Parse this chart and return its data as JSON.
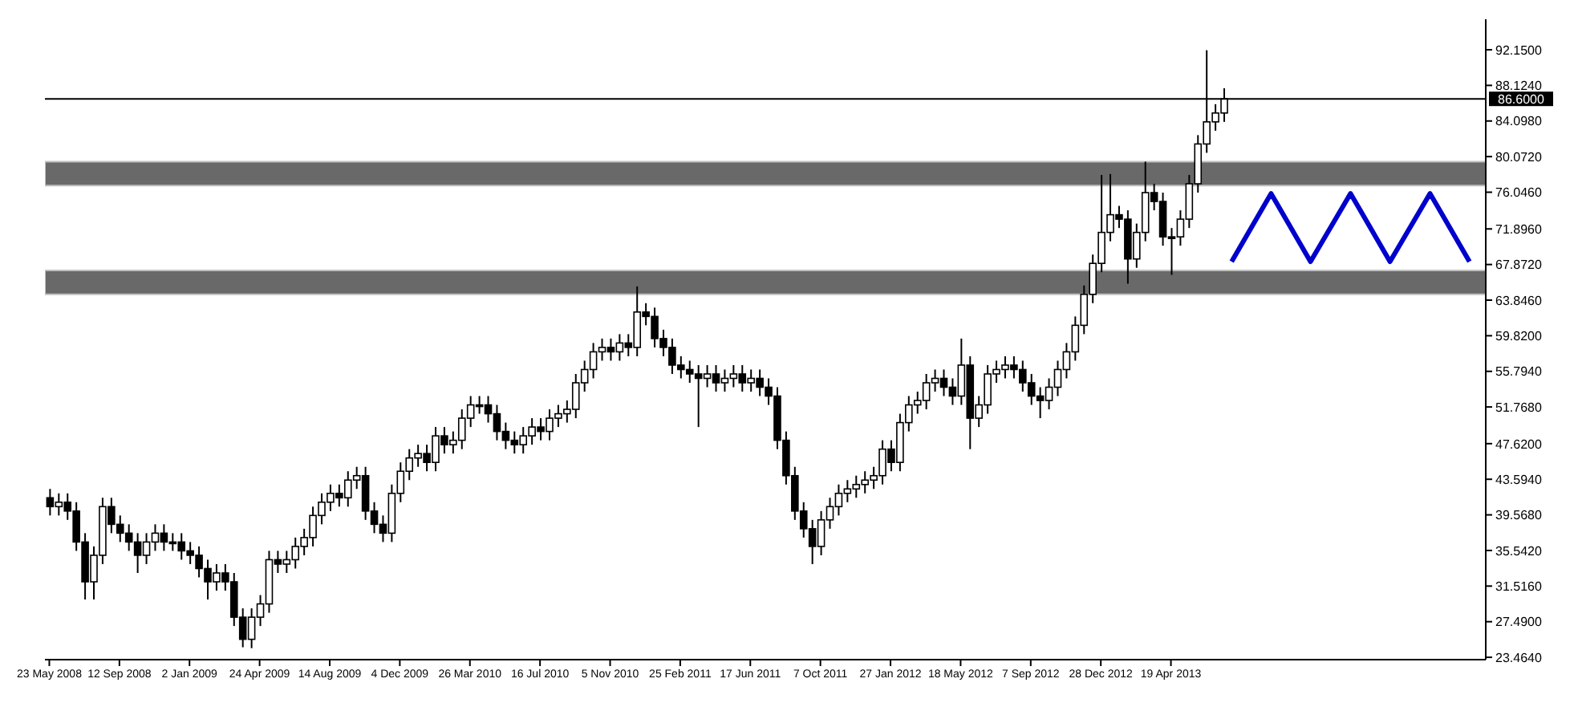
{
  "chart_data": {
    "type": "candlestick",
    "color": "#000000",
    "x": [
      "2008-05-23",
      "2008-06-06",
      "2008-06-20",
      "2008-07-04",
      "2008-07-18",
      "2008-08-01",
      "2008-08-15",
      "2008-08-29",
      "2008-09-12",
      "2008-09-26",
      "2008-10-10",
      "2008-10-24",
      "2008-11-07",
      "2008-11-21",
      "2008-12-05",
      "2008-12-19",
      "2009-01-02",
      "2009-01-16",
      "2009-01-30",
      "2009-02-13",
      "2009-02-27",
      "2009-03-13",
      "2009-03-27",
      "2009-04-10",
      "2009-04-24",
      "2009-05-08",
      "2009-05-22",
      "2009-06-05",
      "2009-06-19",
      "2009-07-03",
      "2009-07-17",
      "2009-07-31",
      "2009-08-14",
      "2009-08-28",
      "2009-09-11",
      "2009-09-25",
      "2009-10-09",
      "2009-10-23",
      "2009-11-06",
      "2009-11-20",
      "2009-12-04",
      "2009-12-18",
      "2010-01-01",
      "2010-01-15",
      "2010-01-29",
      "2010-02-12",
      "2010-02-26",
      "2010-03-12",
      "2010-03-26",
      "2010-04-09",
      "2010-04-23",
      "2010-05-07",
      "2010-05-21",
      "2010-06-04",
      "2010-06-18",
      "2010-07-02",
      "2010-07-16",
      "2010-07-30",
      "2010-08-13",
      "2010-08-27",
      "2010-09-10",
      "2010-09-24",
      "2010-10-08",
      "2010-10-22",
      "2010-11-05",
      "2010-11-19",
      "2010-12-03",
      "2010-12-17",
      "2010-12-31",
      "2011-01-14",
      "2011-01-28",
      "2011-02-11",
      "2011-02-25",
      "2011-03-11",
      "2011-03-25",
      "2011-04-08",
      "2011-04-22",
      "2011-05-06",
      "2011-05-20",
      "2011-06-03",
      "2011-06-17",
      "2011-07-01",
      "2011-07-15",
      "2011-07-29",
      "2011-08-12",
      "2011-08-26",
      "2011-09-09",
      "2011-09-23",
      "2011-10-07",
      "2011-10-21",
      "2011-11-04",
      "2011-11-18",
      "2011-12-02",
      "2011-12-16",
      "2011-12-30",
      "2012-01-13",
      "2012-01-27",
      "2012-02-10",
      "2012-02-24",
      "2012-03-09",
      "2012-03-23",
      "2012-04-06",
      "2012-04-20",
      "2012-05-04",
      "2012-05-18",
      "2012-06-01",
      "2012-06-15",
      "2012-06-29",
      "2012-07-13",
      "2012-07-27",
      "2012-08-10",
      "2012-08-24",
      "2012-09-07",
      "2012-09-21",
      "2012-10-05",
      "2012-10-19",
      "2012-11-02",
      "2012-11-16",
      "2012-11-30",
      "2012-12-14",
      "2012-12-28",
      "2013-01-11",
      "2013-01-25",
      "2013-02-08",
      "2013-02-22",
      "2013-03-08",
      "2013-03-22",
      "2013-04-05",
      "2013-04-19",
      "2013-05-03",
      "2013-05-17",
      "2013-05-31",
      "2013-06-14",
      "2013-06-28",
      "2013-07-12"
    ],
    "ohlc": [
      [
        41.5,
        42.5,
        39.5,
        40.5
      ],
      [
        40.5,
        42,
        39.5,
        41
      ],
      [
        41,
        42,
        39,
        40
      ],
      [
        40,
        41,
        35.5,
        36.5
      ],
      [
        36.5,
        37.5,
        30,
        32
      ],
      [
        32,
        36,
        30,
        35
      ],
      [
        35,
        41.5,
        34,
        40.5
      ],
      [
        40.5,
        41.5,
        37.5,
        38.5
      ],
      [
        38.5,
        39.5,
        36.5,
        37.5
      ],
      [
        37.5,
        38.5,
        35.5,
        36.5
      ],
      [
        36.5,
        37.5,
        33,
        35
      ],
      [
        35,
        37.5,
        34,
        36.5
      ],
      [
        36.5,
        38.5,
        35.5,
        37.5
      ],
      [
        37.5,
        38.5,
        35.5,
        36.5
      ],
      [
        36.5,
        37.5,
        35.5,
        36.5
      ],
      [
        36.5,
        37.5,
        34.5,
        35.5
      ],
      [
        35.5,
        36.5,
        34,
        35
      ],
      [
        35,
        36,
        32.5,
        33.5
      ],
      [
        33.5,
        34.5,
        30,
        32
      ],
      [
        32,
        34,
        31,
        33
      ],
      [
        33,
        34,
        31,
        32
      ],
      [
        32,
        33,
        27,
        28
      ],
      [
        28,
        29,
        24.6,
        25.5
      ],
      [
        25.5,
        29,
        24.5,
        28
      ],
      [
        28,
        30.5,
        27,
        29.5
      ],
      [
        29.5,
        35.5,
        28.5,
        34.5
      ],
      [
        34.5,
        35.5,
        33,
        34
      ],
      [
        34,
        35.5,
        33,
        34.5
      ],
      [
        34.5,
        37,
        33.5,
        36
      ],
      [
        36,
        38,
        35,
        37
      ],
      [
        37,
        40.5,
        36,
        39.5
      ],
      [
        39.5,
        42,
        38.5,
        41
      ],
      [
        41,
        43,
        40,
        42
      ],
      [
        42,
        43,
        40.5,
        41.5
      ],
      [
        41.5,
        44.5,
        40.5,
        43.5
      ],
      [
        43.5,
        45,
        42.5,
        44
      ],
      [
        44,
        45,
        39,
        40
      ],
      [
        40,
        41,
        37.5,
        38.5
      ],
      [
        38.5,
        39.5,
        36.5,
        37.5
      ],
      [
        37.5,
        43,
        36.5,
        42
      ],
      [
        42,
        45.5,
        41,
        44.5
      ],
      [
        44.5,
        47,
        43.5,
        46
      ],
      [
        46,
        47.5,
        45,
        46.5
      ],
      [
        46.5,
        47.5,
        44.5,
        45.5
      ],
      [
        45.5,
        49.5,
        44.5,
        48.5
      ],
      [
        48.5,
        49.5,
        46.5,
        47.5
      ],
      [
        47.5,
        49,
        46.5,
        48
      ],
      [
        48,
        51.5,
        47,
        50.5
      ],
      [
        50.5,
        53,
        49.5,
        52
      ],
      [
        52,
        53,
        51,
        52
      ],
      [
        52,
        53,
        50,
        51
      ],
      [
        51,
        52,
        48,
        49
      ],
      [
        49,
        50,
        47,
        48
      ],
      [
        48,
        49,
        46.5,
        47.5
      ],
      [
        47.5,
        49.5,
        46.5,
        48.5
      ],
      [
        48.5,
        50.5,
        47.5,
        49.5
      ],
      [
        49.5,
        50.5,
        48,
        49
      ],
      [
        49,
        51.5,
        48,
        50.5
      ],
      [
        50.5,
        52,
        49.5,
        51
      ],
      [
        51,
        52.5,
        50,
        51.5
      ],
      [
        51.5,
        55.5,
        50.5,
        54.5
      ],
      [
        54.5,
        57,
        53.5,
        56
      ],
      [
        56,
        59,
        55,
        58
      ],
      [
        58,
        59.5,
        57,
        58.5
      ],
      [
        58.5,
        59.5,
        57,
        58
      ],
      [
        58,
        60,
        57,
        59
      ],
      [
        59,
        60,
        57.5,
        58.5
      ],
      [
        58.5,
        65.4,
        57.5,
        62.5
      ],
      [
        62.5,
        63.5,
        61,
        62
      ],
      [
        62,
        63,
        58.5,
        59.5
      ],
      [
        59.5,
        60.5,
        57.5,
        58.5
      ],
      [
        58.5,
        59.5,
        55.5,
        56.5
      ],
      [
        56.5,
        57.5,
        55,
        56
      ],
      [
        56,
        57,
        54.5,
        55.5
      ],
      [
        55.5,
        56.5,
        49.5,
        55
      ],
      [
        55,
        56.5,
        54,
        55.5
      ],
      [
        55.5,
        56.5,
        53.5,
        54.5
      ],
      [
        54.5,
        56,
        53.5,
        55
      ],
      [
        55,
        56.5,
        54,
        55.5
      ],
      [
        55.5,
        56.5,
        53.5,
        54.5
      ],
      [
        54.5,
        56,
        53.5,
        55
      ],
      [
        55,
        56,
        53,
        54
      ],
      [
        54,
        55,
        52,
        53
      ],
      [
        53,
        54,
        47,
        48
      ],
      [
        48,
        49,
        43,
        44
      ],
      [
        44,
        45,
        39,
        40
      ],
      [
        40,
        41,
        37,
        38
      ],
      [
        38,
        39,
        34,
        36
      ],
      [
        36,
        40,
        35,
        39
      ],
      [
        39,
        41.5,
        38,
        40.5
      ],
      [
        40.5,
        43,
        39.5,
        42
      ],
      [
        42,
        43.5,
        41,
        42.5
      ],
      [
        42.5,
        44,
        41.5,
        43
      ],
      [
        43,
        44.5,
        42,
        43.5
      ],
      [
        43.5,
        45,
        42.5,
        44
      ],
      [
        44,
        48,
        43,
        47
      ],
      [
        47,
        48,
        44.5,
        45.5
      ],
      [
        45.5,
        51,
        44.5,
        50
      ],
      [
        50,
        53,
        49,
        52
      ],
      [
        52,
        53.5,
        51,
        52.5
      ],
      [
        52.5,
        55.5,
        51.5,
        54.5
      ],
      [
        54.5,
        56,
        53.5,
        55
      ],
      [
        55,
        56,
        53,
        54
      ],
      [
        54,
        55,
        52,
        53
      ],
      [
        53,
        59.5,
        52,
        56.5
      ],
      [
        56.5,
        57.5,
        47,
        50.5
      ],
      [
        50.5,
        53,
        49.5,
        52
      ],
      [
        52,
        56.5,
        51,
        55.5
      ],
      [
        55.5,
        57,
        54.5,
        56
      ],
      [
        56,
        57.5,
        55,
        56.5
      ],
      [
        56.5,
        57.5,
        55,
        56
      ],
      [
        56,
        57,
        53.5,
        54.5
      ],
      [
        54.5,
        55.5,
        52,
        53
      ],
      [
        53,
        54,
        50.5,
        52.5
      ],
      [
        52.5,
        55,
        51.5,
        54
      ],
      [
        54,
        57,
        53,
        56
      ],
      [
        56,
        59,
        55,
        58
      ],
      [
        58,
        62,
        57,
        61
      ],
      [
        61,
        65.5,
        60,
        64.5
      ],
      [
        64.5,
        69,
        63.5,
        68
      ],
      [
        68,
        78,
        67,
        71.5
      ],
      [
        71.5,
        78.1,
        70.5,
        73.5
      ],
      [
        73.5,
        74.5,
        72,
        73
      ],
      [
        73,
        74,
        65.7,
        68.5
      ],
      [
        68.5,
        72.5,
        67.5,
        71.5
      ],
      [
        71.5,
        79.5,
        70.5,
        76
      ],
      [
        76,
        77,
        74,
        75
      ],
      [
        75,
        76,
        70,
        71
      ],
      [
        71,
        72,
        66.7,
        71
      ],
      [
        71,
        74,
        70,
        73
      ],
      [
        73,
        78,
        72,
        77
      ],
      [
        77,
        82.5,
        76,
        81.5
      ],
      [
        81.5,
        92.1,
        80.5,
        84
      ],
      [
        84,
        86,
        83,
        85
      ],
      [
        85,
        87.8,
        84,
        86.6
      ]
    ],
    "series": [
      {
        "type": "line",
        "color": "#0000cc",
        "x": [
          "2013-07-25",
          "2013-09-26",
          "2013-11-28",
          "2014-01-31",
          "2014-04-04",
          "2014-06-07",
          "2014-08-09"
        ],
        "values": [
          68.2,
          75.9,
          68.2,
          75.9,
          68.2,
          75.9,
          68.2
        ]
      }
    ],
    "xlim": [
      "2008-05-16",
      "2014-09-04"
    ],
    "xticks": [
      {
        "value": "2008-05-23",
        "label": "23 May 2008"
      },
      {
        "value": "2008-09-12",
        "label": "12 Sep 2008"
      },
      {
        "value": "2009-01-02",
        "label": "2 Jan 2009"
      },
      {
        "value": "2009-04-24",
        "label": "24 Apr 2009"
      },
      {
        "value": "2009-08-14",
        "label": "14 Aug 2009"
      },
      {
        "value": "2009-12-04",
        "label": "4 Dec 2009"
      },
      {
        "value": "2010-03-26",
        "label": "26 Mar 2010"
      },
      {
        "value": "2010-07-16",
        "label": "16 Jul 2010"
      },
      {
        "value": "2010-11-05",
        "label": "5 Nov 2010"
      },
      {
        "value": "2011-02-25",
        "label": "25 Feb 2011"
      },
      {
        "value": "2011-06-17",
        "label": "17 Jun 2011"
      },
      {
        "value": "2011-10-07",
        "label": "7 Oct 2011"
      },
      {
        "value": "2012-01-27",
        "label": "27 Jan 2012"
      },
      {
        "value": "2012-05-18",
        "label": "18 May 2012"
      },
      {
        "value": "2012-09-07",
        "label": "7 Sep 2012"
      },
      {
        "value": "2012-12-28",
        "label": "28 Dec 2012"
      },
      {
        "value": "2013-04-19",
        "label": "19 Apr 2013"
      }
    ],
    "ylim": [
      23.2,
      95.6
    ],
    "yticks": [
      {
        "value": 92.15,
        "label": "92.1500"
      },
      {
        "value": 88.124,
        "label": "88.1240"
      },
      {
        "value": 84.098,
        "label": "84.0980"
      },
      {
        "value": 80.072,
        "label": "80.0720"
      },
      {
        "value": 76.046,
        "label": "76.0460"
      },
      {
        "value": 71.896,
        "label": "71.8960"
      },
      {
        "value": 67.872,
        "label": "67.8720"
      },
      {
        "value": 63.846,
        "label": "63.8460"
      },
      {
        "value": 59.82,
        "label": "59.8200"
      },
      {
        "value": 55.794,
        "label": "55.7940"
      },
      {
        "value": 51.768,
        "label": "51.7680"
      },
      {
        "value": 47.62,
        "label": "47.6200"
      },
      {
        "value": 43.594,
        "label": "43.5940"
      },
      {
        "value": 39.568,
        "label": "39.5680"
      },
      {
        "value": 35.542,
        "label": "35.5420"
      },
      {
        "value": 31.516,
        "label": "31.5160"
      },
      {
        "value": 27.49,
        "label": "27.4900"
      },
      {
        "value": 23.464,
        "label": "23.4640"
      }
    ],
    "ref_lines": [
      {
        "axis": "y",
        "value": 86.6,
        "label": "86.6000",
        "color": "#000000"
      }
    ],
    "bands": [
      {
        "axis": "y",
        "from": 76.8,
        "to": 79.5,
        "color": "#696969"
      },
      {
        "axis": "y",
        "from": 64.5,
        "to": 67.2,
        "color": "#696969"
      }
    ]
  }
}
